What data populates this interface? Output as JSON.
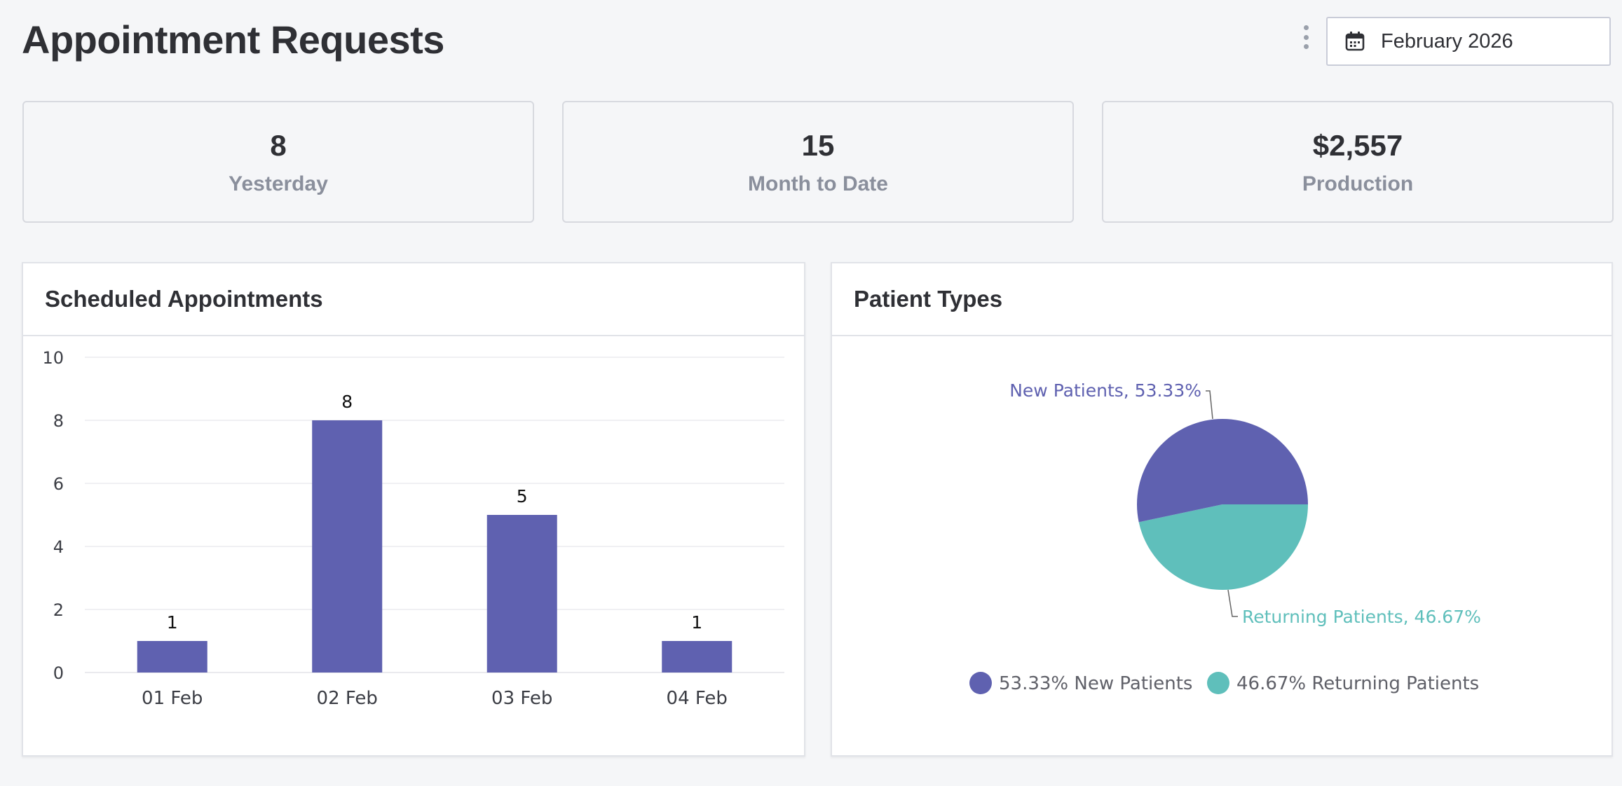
{
  "page": {
    "title": "Appointment Requests"
  },
  "toolbar": {
    "more_icon": "kebab-vertical-icon",
    "calendar_icon": "calendar-icon",
    "date_value": "February 2026"
  },
  "stats": [
    {
      "value": "8",
      "label": "Yesterday"
    },
    {
      "value": "15",
      "label": "Month to Date"
    },
    {
      "value": "$2,557",
      "label": "Production"
    }
  ],
  "scheduled": {
    "title": "Scheduled Appointments",
    "chart_data": {
      "type": "bar",
      "categories": [
        "01 Feb",
        "02 Feb",
        "03 Feb",
        "04 Feb"
      ],
      "values": [
        1,
        8,
        5,
        1
      ],
      "ylim": [
        0,
        10
      ],
      "yticks": [
        0,
        2,
        4,
        6,
        8,
        10
      ],
      "data_labels": [
        "1",
        "8",
        "5",
        "1"
      ],
      "grid": true,
      "color": "#5f61b0"
    }
  },
  "patient_types": {
    "title": "Patient Types",
    "chart_data": {
      "type": "pie",
      "slices": [
        {
          "name": "New Patients",
          "value": 53.33,
          "color": "#5f61b0",
          "callout": "New Patients, 53.33%",
          "legend": "53.33% New Patients"
        },
        {
          "name": "Returning Patients",
          "value": 46.67,
          "color": "#5fbfbb",
          "callout": "Returning Patients, 46.67%",
          "legend": "46.67% Returning Patients"
        }
      ],
      "legend_position": "bottom"
    }
  }
}
